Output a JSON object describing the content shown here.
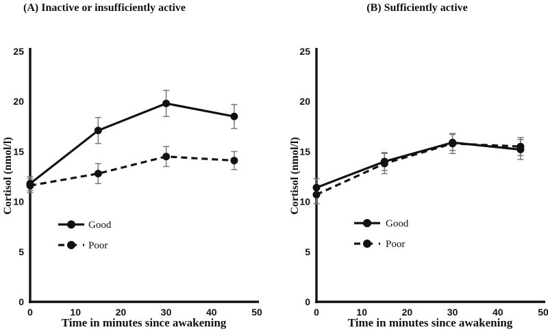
{
  "figure": {
    "background": "#ffffff",
    "ink": "#111111",
    "error_bar_color": "#777777"
  },
  "chart_data": [
    {
      "panel": "A",
      "type": "line",
      "title": "(A) Inactive or insufficiently active",
      "xlabel": "Time in minutes since awakening",
      "ylabel": "Cortisol (nmol/l)",
      "x": [
        0,
        15,
        30,
        45
      ],
      "xlim": [
        0,
        50
      ],
      "ylim": [
        0,
        25
      ],
      "xticks": [
        0,
        10,
        20,
        30,
        40,
        50
      ],
      "yticks": [
        0,
        5,
        10,
        15,
        20,
        25
      ],
      "grid": false,
      "legend_position": "inside-lower-left",
      "series": [
        {
          "name": "Good",
          "line_style": "solid",
          "marker": "circle",
          "values": [
            11.8,
            17.1,
            19.8,
            18.5
          ],
          "errors": [
            0.7,
            1.3,
            1.3,
            1.2
          ]
        },
        {
          "name": "Poor",
          "line_style": "dashed",
          "marker": "circle",
          "values": [
            11.6,
            12.8,
            14.5,
            14.1
          ],
          "errors": [
            0.7,
            1.0,
            1.0,
            0.9
          ]
        }
      ]
    },
    {
      "panel": "B",
      "type": "line",
      "title": "(B) Sufficiently active",
      "xlabel": "Time in minutes since awakening",
      "ylabel": "Cortisol (nmol/l)",
      "x": [
        0,
        15,
        30,
        45
      ],
      "xlim": [
        0,
        50
      ],
      "ylim": [
        0,
        25
      ],
      "xticks": [
        0,
        10,
        20,
        30,
        40,
        50
      ],
      "yticks": [
        0,
        5,
        10,
        15,
        20,
        25
      ],
      "grid": false,
      "legend_position": "inside-lower-left",
      "series": [
        {
          "name": "Good",
          "line_style": "solid",
          "marker": "circle",
          "values": [
            11.4,
            14.0,
            15.9,
            15.2
          ],
          "errors": [
            0.9,
            0.9,
            0.8,
            1.0
          ]
        },
        {
          "name": "Poor",
          "line_style": "dashed",
          "marker": "circle",
          "values": [
            10.7,
            13.8,
            15.8,
            15.5
          ],
          "errors": [
            0.9,
            1.0,
            1.0,
            0.9
          ]
        }
      ]
    }
  ]
}
